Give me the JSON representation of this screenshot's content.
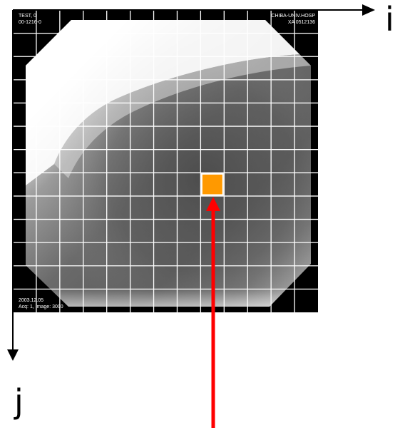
{
  "image_overlay": {
    "top_left_line1": "TEST, 0",
    "top_left_line2": "00-1216-0",
    "top_right_line1": "CHIBA-UNIV.HOSP",
    "top_right_line2": "XA 0512136",
    "bottom_left_line1": "2003.12.05",
    "bottom_left_line2": "Acq: 1, Image: 3000"
  },
  "axes": {
    "horizontal_label": "i",
    "vertical_label": "j"
  },
  "grid": {
    "columns": 13,
    "rows": 13,
    "line_color": "#ffffff"
  },
  "highlight": {
    "column": 8,
    "row": 7,
    "fill_color": "#ff9900",
    "border_color": "#ffffff"
  },
  "pointer_arrow": {
    "color": "#ff0000",
    "direction": "up"
  },
  "colors": {
    "axis_color": "#000000",
    "background": "#ffffff",
    "image_frame": "#000000"
  }
}
